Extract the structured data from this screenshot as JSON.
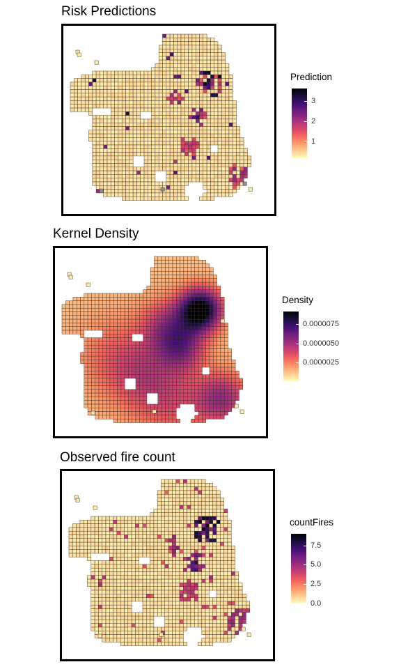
{
  "colors": {
    "ramp": [
      "#fcfdbf",
      "#feca8d",
      "#fd9668",
      "#f1605d",
      "#cd4071",
      "#9e2f7f",
      "#721f81",
      "#440f76",
      "#180f3d",
      "#000004"
    ],
    "cell_border": "#3a3320",
    "background": "#ffffff"
  },
  "panels": [
    {
      "title": "Risk Predictions",
      "legend_title": "Prediction",
      "legend_ticks": [
        "3",
        "2",
        "1"
      ],
      "legend_tick_values": [
        3,
        2,
        1
      ],
      "legend_range": [
        0.2,
        3.6
      ]
    },
    {
      "title": "Kernel Density",
      "legend_title": "Density",
      "legend_ticks": [
        "0.0000075",
        "0.0000050",
        "0.0000025"
      ],
      "legend_tick_values": [
        7.5e-06,
        5e-06,
        2.5e-06
      ],
      "legend_range": [
        0,
        9.2e-06
      ]
    },
    {
      "title": "Observed fire count",
      "legend_title": "countFires",
      "legend_ticks": [
        "7.5",
        "5.0",
        "2.5",
        "0.0"
      ],
      "legend_tick_values": [
        7.5,
        5.0,
        2.5,
        0.0
      ],
      "legend_range": [
        0,
        9
      ]
    }
  ]
}
